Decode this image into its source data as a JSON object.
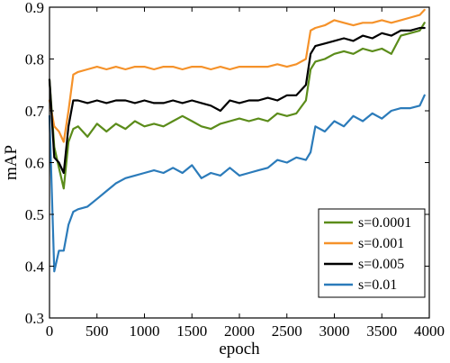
{
  "chart_data": {
    "type": "line",
    "xlabel": "epoch",
    "ylabel": "mAP",
    "xlim": [
      0,
      4000
    ],
    "ylim": [
      0.3,
      0.9
    ],
    "xticks": [
      0,
      500,
      1000,
      1500,
      2000,
      2500,
      3000,
      3500,
      4000
    ],
    "yticks": [
      0.3,
      0.4,
      0.5,
      0.6,
      0.7,
      0.8,
      0.9
    ],
    "xtick_labels": [
      "0",
      "500",
      "1000",
      "1500",
      "2000",
      "2500",
      "3000",
      "3500",
      "4000"
    ],
    "ytick_labels": [
      "0.3",
      "0.4",
      "0.5",
      "0.6",
      "0.7",
      "0.8",
      "0.9"
    ],
    "grid": false,
    "legend_position": "bottom-right",
    "series": [
      {
        "name": "s=0.0001",
        "color": "#5b8c1a",
        "x": [
          0,
          50,
          100,
          150,
          200,
          250,
          300,
          400,
          500,
          600,
          700,
          800,
          900,
          1000,
          1100,
          1200,
          1300,
          1400,
          1500,
          1600,
          1700,
          1800,
          1900,
          2000,
          2100,
          2200,
          2300,
          2400,
          2500,
          2600,
          2700,
          2750,
          2800,
          2900,
          3000,
          3100,
          3200,
          3300,
          3400,
          3500,
          3600,
          3700,
          3800,
          3900,
          3950
        ],
        "y": [
          0.76,
          0.63,
          0.59,
          0.55,
          0.64,
          0.665,
          0.67,
          0.65,
          0.675,
          0.66,
          0.675,
          0.665,
          0.68,
          0.67,
          0.675,
          0.67,
          0.68,
          0.69,
          0.68,
          0.67,
          0.665,
          0.675,
          0.68,
          0.685,
          0.68,
          0.685,
          0.68,
          0.695,
          0.69,
          0.695,
          0.72,
          0.78,
          0.795,
          0.8,
          0.81,
          0.815,
          0.81,
          0.82,
          0.815,
          0.82,
          0.81,
          0.845,
          0.85,
          0.855,
          0.87
        ]
      },
      {
        "name": "s=0.001",
        "color": "#f5922a",
        "x": [
          0,
          50,
          100,
          150,
          200,
          250,
          300,
          400,
          500,
          600,
          700,
          800,
          900,
          1000,
          1100,
          1200,
          1300,
          1400,
          1500,
          1600,
          1700,
          1800,
          1900,
          2000,
          2100,
          2200,
          2300,
          2400,
          2500,
          2600,
          2700,
          2750,
          2800,
          2900,
          3000,
          3100,
          3200,
          3300,
          3400,
          3500,
          3600,
          3700,
          3800,
          3900,
          3950
        ],
        "y": [
          0.72,
          0.67,
          0.66,
          0.64,
          0.7,
          0.77,
          0.775,
          0.78,
          0.785,
          0.78,
          0.785,
          0.78,
          0.785,
          0.785,
          0.78,
          0.785,
          0.785,
          0.78,
          0.785,
          0.785,
          0.78,
          0.785,
          0.78,
          0.785,
          0.785,
          0.785,
          0.785,
          0.79,
          0.785,
          0.79,
          0.8,
          0.855,
          0.86,
          0.865,
          0.875,
          0.87,
          0.865,
          0.87,
          0.87,
          0.875,
          0.87,
          0.875,
          0.88,
          0.885,
          0.895
        ]
      },
      {
        "name": "s=0.005",
        "color": "#000000",
        "x": [
          0,
          50,
          100,
          150,
          200,
          250,
          300,
          400,
          500,
          600,
          700,
          800,
          900,
          1000,
          1100,
          1200,
          1300,
          1400,
          1500,
          1600,
          1700,
          1800,
          1900,
          2000,
          2100,
          2200,
          2300,
          2400,
          2500,
          2600,
          2700,
          2750,
          2800,
          2900,
          3000,
          3100,
          3200,
          3300,
          3400,
          3500,
          3600,
          3700,
          3800,
          3900,
          3950
        ],
        "y": [
          0.76,
          0.61,
          0.6,
          0.58,
          0.67,
          0.72,
          0.72,
          0.715,
          0.72,
          0.715,
          0.72,
          0.72,
          0.715,
          0.72,
          0.715,
          0.715,
          0.72,
          0.715,
          0.72,
          0.715,
          0.71,
          0.7,
          0.72,
          0.715,
          0.72,
          0.72,
          0.725,
          0.72,
          0.73,
          0.73,
          0.75,
          0.81,
          0.825,
          0.83,
          0.835,
          0.84,
          0.835,
          0.845,
          0.84,
          0.85,
          0.845,
          0.855,
          0.855,
          0.86,
          0.86
        ]
      },
      {
        "name": "s=0.01",
        "color": "#2b7bba",
        "x": [
          0,
          50,
          100,
          150,
          200,
          250,
          300,
          400,
          500,
          600,
          700,
          800,
          900,
          1000,
          1100,
          1200,
          1300,
          1400,
          1500,
          1600,
          1700,
          1800,
          1900,
          2000,
          2100,
          2200,
          2300,
          2400,
          2500,
          2600,
          2700,
          2750,
          2800,
          2900,
          3000,
          3100,
          3200,
          3300,
          3400,
          3500,
          3600,
          3700,
          3800,
          3900,
          3950
        ],
        "y": [
          0.69,
          0.39,
          0.43,
          0.43,
          0.48,
          0.505,
          0.51,
          0.515,
          0.53,
          0.545,
          0.56,
          0.57,
          0.575,
          0.58,
          0.585,
          0.58,
          0.59,
          0.58,
          0.595,
          0.57,
          0.58,
          0.575,
          0.59,
          0.575,
          0.58,
          0.585,
          0.59,
          0.605,
          0.6,
          0.61,
          0.605,
          0.62,
          0.67,
          0.66,
          0.68,
          0.67,
          0.69,
          0.68,
          0.695,
          0.685,
          0.7,
          0.705,
          0.705,
          0.71,
          0.73
        ]
      }
    ]
  }
}
